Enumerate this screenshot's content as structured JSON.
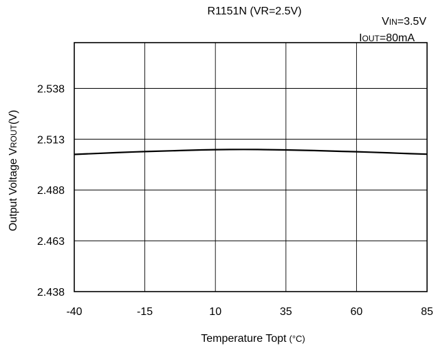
{
  "chart_data": {
    "type": "line",
    "title": "R1151N (VR=2.5V)",
    "conditions": {
      "vin": {
        "main": "V",
        "sub": "IN",
        "value": "=3.5V"
      },
      "iout": {
        "main": "I",
        "sub": "OUT",
        "value": "=80mA"
      }
    },
    "xlabel": {
      "text": "Temperature Topt",
      "unit": "(°C)"
    },
    "ylabel": {
      "main": "Output Voltage V",
      "sub": "ROUT",
      "unit": "(V)"
    },
    "xlim": [
      -40,
      85
    ],
    "ylim": [
      2.438,
      2.5605
    ],
    "x_ticks": [
      "-40",
      "-15",
      "10",
      "35",
      "60",
      "85"
    ],
    "x_tick_values": [
      -40,
      -15,
      10,
      35,
      60,
      85
    ],
    "y_ticks": [
      "2.438",
      "2.463",
      "2.488",
      "2.513",
      "2.538"
    ],
    "y_tick_values": [
      2.438,
      2.463,
      2.488,
      2.513,
      2.538
    ],
    "grid": true,
    "series": [
      {
        "x": [
          -40,
          -25,
          -15,
          -5,
          5,
          15,
          25,
          35,
          45,
          55,
          65,
          75,
          85
        ],
        "y": [
          2.5055,
          2.5064,
          2.5069,
          2.5073,
          2.5077,
          2.5079,
          2.5079,
          2.5077,
          2.5074,
          2.507,
          2.5066,
          2.5061,
          2.5056
        ]
      }
    ]
  }
}
